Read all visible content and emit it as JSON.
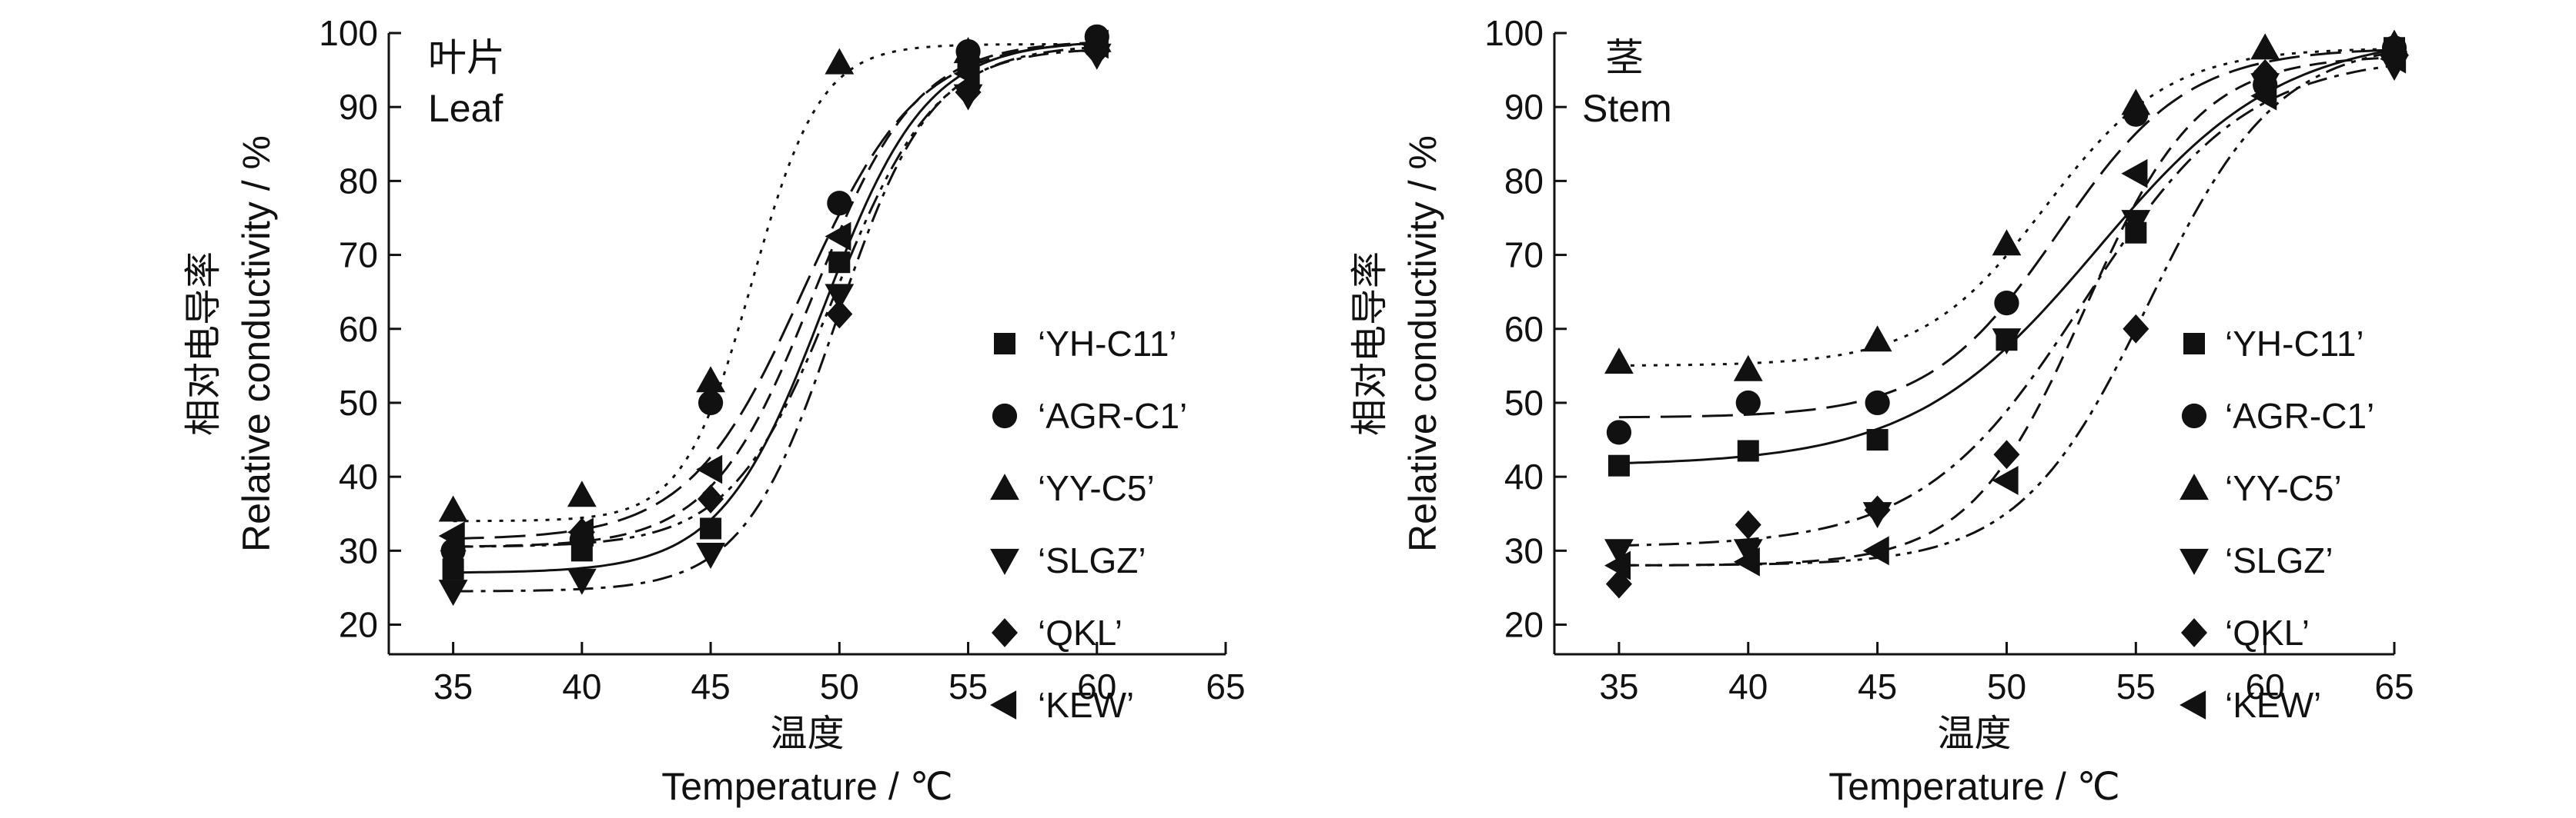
{
  "chart_data": [
    {
      "type": "scatter",
      "panel": "leaf",
      "title": "叶片",
      "subtitle": "Leaf",
      "xlabel_cn": "温度",
      "xlabel": "Temperature / ℃",
      "ylabel_cn": "相对电导率",
      "ylabel": "Relative conductivity / %",
      "xlim": [
        32.5,
        65
      ],
      "ylim": [
        16,
        100
      ],
      "xticks": [
        35,
        40,
        45,
        50,
        55,
        60,
        65
      ],
      "yticks": [
        20,
        30,
        40,
        50,
        60,
        70,
        80,
        90,
        100
      ],
      "x": [
        35,
        40,
        45,
        50,
        55,
        60
      ],
      "grid": false,
      "legend_position": "right",
      "series": [
        {
          "name": "‘YH-C11’",
          "marker": "square",
          "line": "solid",
          "values": [
            27.5,
            30,
            33,
            69,
            96,
            98.5
          ],
          "fit": {
            "min": 27,
            "max": 99,
            "x0": 49.4,
            "k": 0.5
          }
        },
        {
          "name": "‘AGR-C1’",
          "marker": "circle",
          "line": "dash",
          "values": [
            30,
            31.5,
            50,
            77,
            97.5,
            99.5
          ],
          "fit": {
            "min": 30.5,
            "max": 99,
            "x0": 49.0,
            "k": 0.5
          }
        },
        {
          "name": "‘YY-C5’",
          "marker": "triangle-up",
          "line": "dot",
          "values": [
            35.5,
            37.5,
            53,
            96,
            97.5,
            99
          ],
          "fit": {
            "min": 34,
            "max": 98.5,
            "x0": 46.6,
            "k": 0.75
          }
        },
        {
          "name": "‘SLGZ’",
          "marker": "triangle-down",
          "line": "dashdot",
          "values": [
            24.5,
            26,
            29.5,
            64.5,
            91.5,
            97
          ],
          "fit": {
            "min": 24.5,
            "max": 98,
            "x0": 49.9,
            "k": 0.55
          }
        },
        {
          "name": "‘QKL’",
          "marker": "diamond",
          "line": "dashdotdot",
          "values": [
            30,
            32.5,
            37,
            62,
            92,
            97.5
          ],
          "fit": {
            "min": 30.5,
            "max": 98.5,
            "x0": 49.8,
            "k": 0.5
          }
        },
        {
          "name": "‘KEW’",
          "marker": "triangle-left",
          "line": "longdash",
          "values": [
            32,
            32.5,
            41,
            72.5,
            94.5,
            98.5
          ],
          "fit": {
            "min": 31.5,
            "max": 99,
            "x0": 48.6,
            "k": 0.45
          }
        }
      ]
    },
    {
      "type": "scatter",
      "panel": "stem",
      "title": "茎",
      "subtitle": "Stem",
      "xlabel_cn": "温度",
      "xlabel": "Temperature / ℃",
      "ylabel_cn": "相对电导率",
      "ylabel": "Relative conductivity / %",
      "xlim": [
        32.5,
        65
      ],
      "ylim": [
        16,
        100
      ],
      "xticks": [
        35,
        40,
        45,
        50,
        55,
        60,
        65
      ],
      "yticks": [
        20,
        30,
        40,
        50,
        60,
        70,
        80,
        90,
        100
      ],
      "x": [
        35,
        40,
        45,
        50,
        55,
        60,
        65
      ],
      "grid": false,
      "legend_position": "right",
      "series": [
        {
          "name": "‘YH-C11’",
          "marker": "square",
          "line": "solid",
          "values": [
            41.5,
            43.5,
            45,
            58.5,
            73,
            93.5,
            98
          ],
          "fit": {
            "min": 41.5,
            "max": 100,
            "x0": 53.5,
            "k": 0.28
          }
        },
        {
          "name": "‘AGR-C1’",
          "marker": "circle",
          "line": "longdash",
          "values": [
            46,
            50,
            50,
            63.5,
            89,
            93,
            98
          ],
          "fit": {
            "min": 48,
            "max": 98,
            "x0": 52,
            "k": 0.4
          }
        },
        {
          "name": "‘YY-C5’",
          "marker": "triangle-up",
          "line": "dot",
          "values": [
            55.5,
            54.5,
            58.5,
            71.5,
            90.5,
            98,
            98.5
          ],
          "fit": {
            "min": 55,
            "max": 98,
            "x0": 51.5,
            "k": 0.42
          }
        },
        {
          "name": "‘SLGZ’",
          "marker": "triangle-down",
          "line": "dashdot",
          "values": [
            30,
            30,
            35,
            58.5,
            74.5,
            93,
            95.5
          ],
          "fit": {
            "min": 30.5,
            "max": 97,
            "x0": 53,
            "k": 0.32
          }
        },
        {
          "name": "‘QKL’",
          "marker": "diamond",
          "line": "dashdotdot",
          "values": [
            25.5,
            33.5,
            35.5,
            43,
            60,
            94.5,
            97.5
          ],
          "fit": {
            "min": 28,
            "max": 99,
            "x0": 55.5,
            "k": 0.4
          }
        },
        {
          "name": "‘KEW’",
          "marker": "triangle-left",
          "line": "dash",
          "values": [
            28,
            28.5,
            30,
            39.5,
            81,
            91.5,
            96.5
          ],
          "fit": {
            "min": 28,
            "max": 97,
            "x0": 53,
            "k": 0.45
          }
        }
      ]
    }
  ]
}
